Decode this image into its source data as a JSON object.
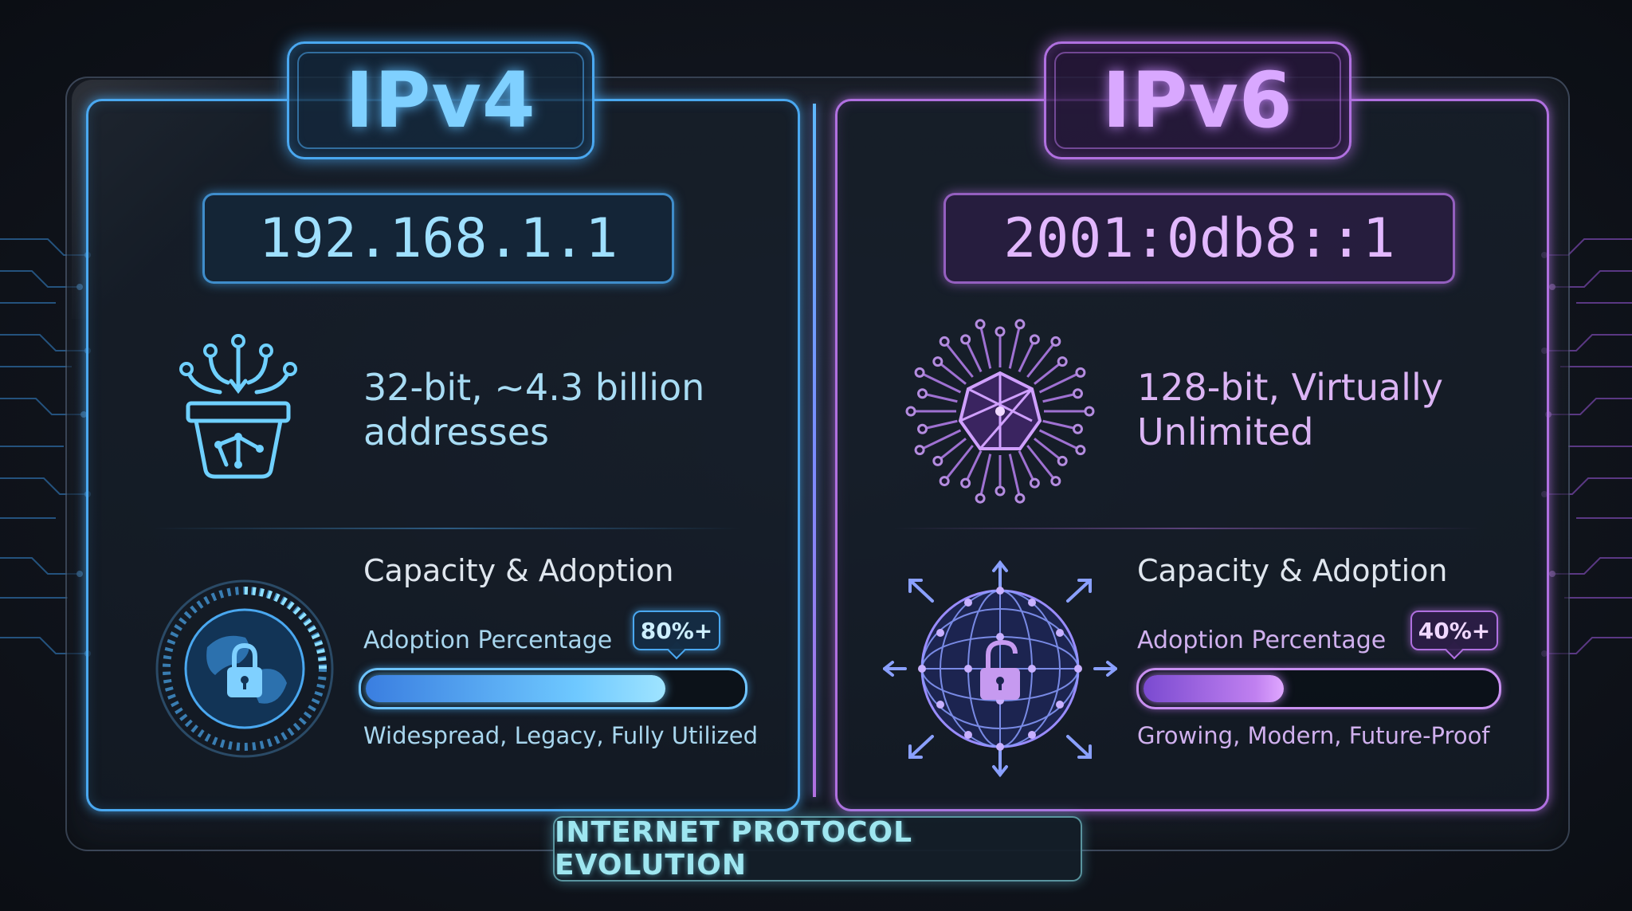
{
  "ipv4": {
    "title": "IPv4",
    "address": "192.168.1.1",
    "capacity": "32-bit, ~4.3 billion addresses",
    "heading": "Capacity & Adoption",
    "adoption_label": "Adoption Percentage",
    "badge": "80%+",
    "adoption_fraction": 0.8,
    "status": "Widespread, Legacy, Fully Utilized",
    "accent": "#4aa8f0",
    "icons": [
      "network-basket-icon",
      "globe-lock-icon"
    ]
  },
  "ipv6": {
    "title": "IPv6",
    "address": "2001:0db8::1",
    "capacity": "128-bit, Virtually Unlimited",
    "heading": "Capacity & Adoption",
    "adoption_label": "Adoption Percentage",
    "badge": "40%+",
    "adoption_fraction": 0.4,
    "status": "Growing, Modern, Future-Proof",
    "accent": "#b070e0",
    "icons": [
      "starburst-network-icon",
      "mesh-sphere-unlock-icon"
    ]
  },
  "footer": {
    "label": "INTERNET PROTOCOL EVOLUTION"
  }
}
